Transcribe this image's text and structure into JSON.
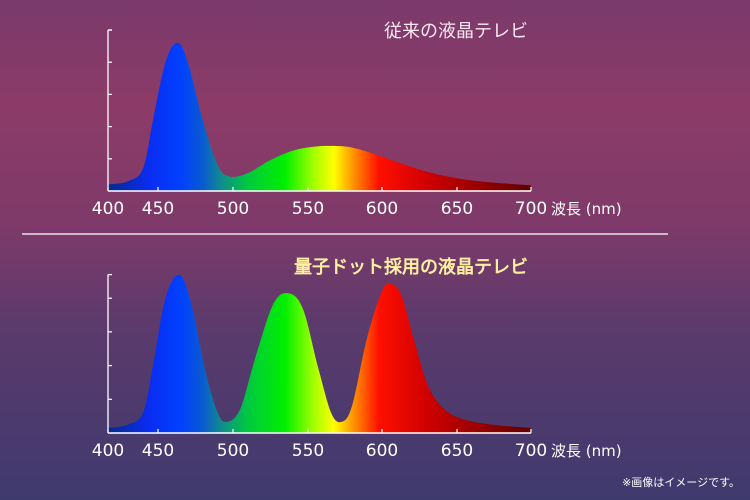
{
  "chart_data": [
    {
      "type": "area",
      "title": "従来の液晶テレビ",
      "xlabel": "波長 (nm)",
      "ylabel": "",
      "xlim": [
        400,
        700
      ],
      "ylim": [
        0,
        5
      ],
      "xticks": [
        400,
        450,
        500,
        550,
        600,
        650,
        700
      ],
      "yticks": [
        0,
        1,
        2,
        3,
        4,
        5
      ],
      "grid": false,
      "fill": "spectrum-gradient",
      "title_color": "#fbe8f0",
      "points": [
        [
          400,
          0.2
        ],
        [
          420,
          0.3
        ],
        [
          435,
          0.7
        ],
        [
          445,
          2.2
        ],
        [
          455,
          4.0
        ],
        [
          463,
          4.6
        ],
        [
          470,
          4.0
        ],
        [
          480,
          2.2
        ],
        [
          490,
          0.8
        ],
        [
          498,
          0.45
        ],
        [
          510,
          0.55
        ],
        [
          525,
          0.95
        ],
        [
          540,
          1.25
        ],
        [
          555,
          1.38
        ],
        [
          568,
          1.4
        ],
        [
          580,
          1.35
        ],
        [
          595,
          1.15
        ],
        [
          610,
          0.9
        ],
        [
          630,
          0.6
        ],
        [
          650,
          0.4
        ],
        [
          670,
          0.28
        ],
        [
          700,
          0.18
        ]
      ]
    },
    {
      "type": "area",
      "title": "量子ドット採用の液晶テレビ",
      "xlabel": "波長 (nm)",
      "ylabel": "",
      "xlim": [
        400,
        700
      ],
      "ylim": [
        0,
        4.7
      ],
      "xticks": [
        400,
        450,
        500,
        550,
        600,
        650,
        700
      ],
      "yticks": [
        0,
        1,
        2,
        3,
        4
      ],
      "grid": false,
      "fill": "spectrum-gradient",
      "title_color": "#fff0a0",
      "points": [
        [
          400,
          0.15
        ],
        [
          420,
          0.25
        ],
        [
          435,
          0.6
        ],
        [
          445,
          2.0
        ],
        [
          455,
          4.0
        ],
        [
          464,
          4.69
        ],
        [
          472,
          3.9
        ],
        [
          482,
          1.8
        ],
        [
          490,
          0.6
        ],
        [
          496,
          0.33
        ],
        [
          505,
          0.7
        ],
        [
          515,
          2.2
        ],
        [
          527,
          3.8
        ],
        [
          537,
          4.15
        ],
        [
          547,
          3.7
        ],
        [
          557,
          2.0
        ],
        [
          566,
          0.6
        ],
        [
          573,
          0.33
        ],
        [
          580,
          0.8
        ],
        [
          590,
          2.8
        ],
        [
          600,
          4.2
        ],
        [
          606,
          4.42
        ],
        [
          613,
          4.1
        ],
        [
          622,
          2.7
        ],
        [
          632,
          1.3
        ],
        [
          645,
          0.6
        ],
        [
          660,
          0.35
        ],
        [
          680,
          0.22
        ],
        [
          700,
          0.15
        ]
      ]
    }
  ],
  "spectrum_colors": [
    [
      400,
      "#062a8a"
    ],
    [
      440,
      "#0a2cf0"
    ],
    [
      465,
      "#0040ff"
    ],
    [
      480,
      "#0a5ad0"
    ],
    [
      492,
      "#108a90"
    ],
    [
      510,
      "#00c840"
    ],
    [
      535,
      "#00f000"
    ],
    [
      555,
      "#a8ff00"
    ],
    [
      568,
      "#ffff00"
    ],
    [
      580,
      "#ff9a00"
    ],
    [
      598,
      "#ff1000"
    ],
    [
      630,
      "#d00000"
    ],
    [
      700,
      "#600000"
    ]
  ],
  "note": "※画像はイメージです。"
}
